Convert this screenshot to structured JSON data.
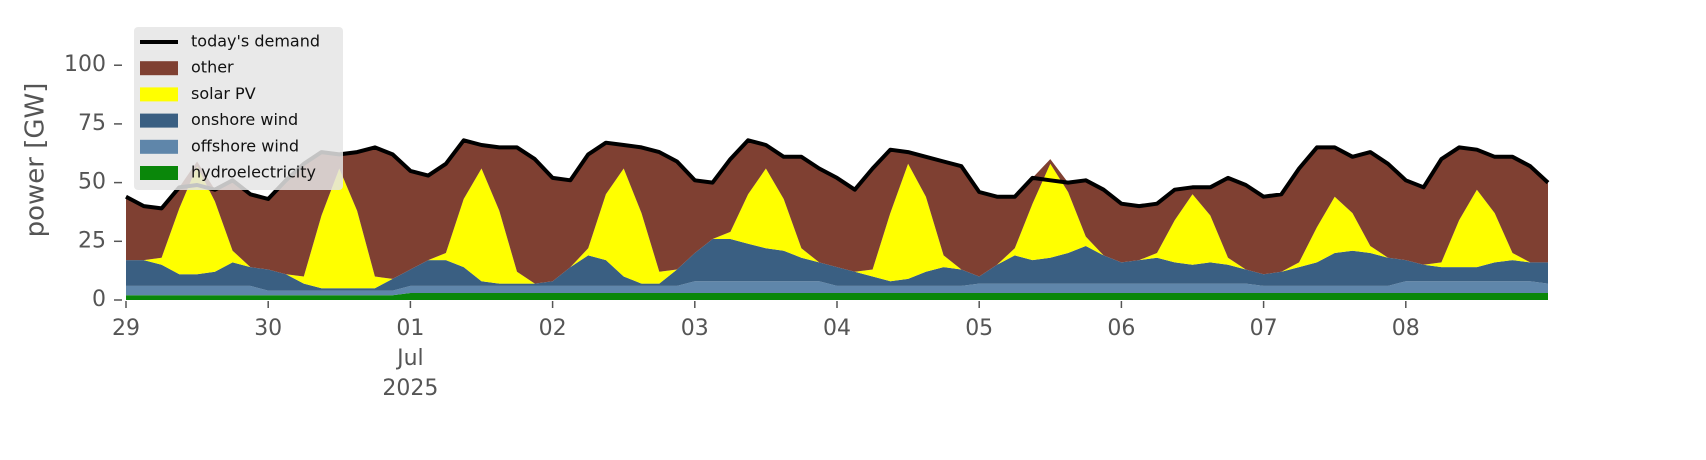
{
  "chart_data": {
    "type": "stacked_area",
    "ylabel": "power [GW]",
    "ylim": [
      0,
      115
    ],
    "yticks": [
      0,
      25,
      50,
      75,
      100
    ],
    "xlim": [
      "2025-06-29 00:00",
      "2025-07-09 00:00"
    ],
    "xticks": [
      {
        "value": "2025-06-29 00:00",
        "label": "29"
      },
      {
        "value": "2025-06-30 00:00",
        "label": "30"
      },
      {
        "value": "2025-07-01 00:00",
        "label": "01"
      },
      {
        "value": "2025-07-02 00:00",
        "label": "02"
      },
      {
        "value": "2025-07-03 00:00",
        "label": "03"
      },
      {
        "value": "2025-07-04 00:00",
        "label": "04"
      },
      {
        "value": "2025-07-05 00:00",
        "label": "05"
      },
      {
        "value": "2025-07-06 00:00",
        "label": "06"
      },
      {
        "value": "2025-07-07 00:00",
        "label": "07"
      },
      {
        "value": "2025-07-08 00:00",
        "label": "08"
      }
    ],
    "xtick_sublabels": [
      {
        "value": "2025-07-01 00:00",
        "label": "Jul"
      },
      {
        "value": "2025-07-01 00:00",
        "label": "2025"
      }
    ],
    "legend": "upper left",
    "x": [
      "2025-06-29 00:00",
      "2025-06-29 03:00",
      "2025-06-29 06:00",
      "2025-06-29 09:00",
      "2025-06-29 12:00",
      "2025-06-29 15:00",
      "2025-06-29 18:00",
      "2025-06-29 21:00",
      "2025-06-30 00:00",
      "2025-06-30 03:00",
      "2025-06-30 06:00",
      "2025-06-30 09:00",
      "2025-06-30 12:00",
      "2025-06-30 15:00",
      "2025-06-30 18:00",
      "2025-06-30 21:00",
      "2025-07-01 00:00",
      "2025-07-01 03:00",
      "2025-07-01 06:00",
      "2025-07-01 09:00",
      "2025-07-01 12:00",
      "2025-07-01 15:00",
      "2025-07-01 18:00",
      "2025-07-01 21:00",
      "2025-07-02 00:00",
      "2025-07-02 03:00",
      "2025-07-02 06:00",
      "2025-07-02 09:00",
      "2025-07-02 12:00",
      "2025-07-02 15:00",
      "2025-07-02 18:00",
      "2025-07-02 21:00",
      "2025-07-03 00:00",
      "2025-07-03 03:00",
      "2025-07-03 06:00",
      "2025-07-03 09:00",
      "2025-07-03 12:00",
      "2025-07-03 15:00",
      "2025-07-03 18:00",
      "2025-07-03 21:00",
      "2025-07-04 00:00",
      "2025-07-04 03:00",
      "2025-07-04 06:00",
      "2025-07-04 09:00",
      "2025-07-04 12:00",
      "2025-07-04 15:00",
      "2025-07-04 18:00",
      "2025-07-04 21:00",
      "2025-07-05 00:00",
      "2025-07-05 03:00",
      "2025-07-05 06:00",
      "2025-07-05 09:00",
      "2025-07-05 12:00",
      "2025-07-05 15:00",
      "2025-07-05 18:00",
      "2025-07-05 21:00",
      "2025-07-06 00:00",
      "2025-07-06 03:00",
      "2025-07-06 06:00",
      "2025-07-06 09:00",
      "2025-07-06 12:00",
      "2025-07-06 15:00",
      "2025-07-06 18:00",
      "2025-07-06 21:00",
      "2025-07-07 00:00",
      "2025-07-07 03:00",
      "2025-07-07 06:00",
      "2025-07-07 09:00",
      "2025-07-07 12:00",
      "2025-07-07 15:00",
      "2025-07-07 18:00",
      "2025-07-07 21:00",
      "2025-07-08 00:00",
      "2025-07-08 03:00",
      "2025-07-08 06:00",
      "2025-07-08 09:00",
      "2025-07-08 12:00",
      "2025-07-08 15:00",
      "2025-07-08 18:00",
      "2025-07-08 21:00",
      "2025-07-09 00:00"
    ],
    "series": [
      {
        "name": "hydroelectricity",
        "color": "#0a870a",
        "values": [
          2,
          2,
          2,
          2,
          2,
          2,
          2,
          2,
          2,
          2,
          2,
          2,
          2,
          2,
          2,
          2,
          3,
          3,
          3,
          3,
          3,
          3,
          3,
          3,
          3,
          3,
          3,
          3,
          3,
          3,
          3,
          3,
          3,
          3,
          3,
          3,
          3,
          3,
          3,
          3,
          3,
          3,
          3,
          3,
          3,
          3,
          3,
          3,
          3,
          3,
          3,
          3,
          3,
          3,
          3,
          3,
          3,
          3,
          3,
          3,
          3,
          3,
          3,
          3,
          3,
          3,
          3,
          3,
          3,
          3,
          3,
          3,
          3,
          3,
          3,
          3,
          3,
          3,
          3,
          3,
          3
        ]
      },
      {
        "name": "offshore wind",
        "color": "#5f86aa",
        "values": [
          4,
          4,
          4,
          4,
          4,
          4,
          4,
          4,
          2,
          2,
          2,
          2,
          2,
          2,
          2,
          2,
          3,
          3,
          3,
          3,
          3,
          3,
          3,
          3,
          3,
          3,
          3,
          3,
          3,
          3,
          3,
          3,
          5,
          5,
          5,
          5,
          5,
          5,
          5,
          5,
          3,
          3,
          3,
          3,
          3,
          3,
          3,
          3,
          4,
          4,
          4,
          4,
          4,
          4,
          4,
          4,
          4,
          4,
          4,
          4,
          4,
          4,
          4,
          4,
          3,
          3,
          3,
          3,
          3,
          3,
          3,
          3,
          5,
          5,
          5,
          5,
          5,
          5,
          5,
          5,
          4
        ]
      },
      {
        "name": "onshore wind",
        "color": "#3a5f82",
        "values": [
          11,
          11,
          9,
          5,
          5,
          6,
          10,
          8,
          9,
          7,
          3,
          1,
          1,
          1,
          1,
          5,
          7,
          11,
          11,
          8,
          2,
          1,
          1,
          1,
          2,
          8,
          13,
          11,
          4,
          1,
          1,
          7,
          12,
          18,
          18,
          16,
          14,
          13,
          10,
          8,
          8,
          6,
          4,
          2,
          3,
          6,
          8,
          7,
          3,
          8,
          12,
          10,
          11,
          13,
          16,
          12,
          9,
          10,
          11,
          9,
          8,
          9,
          8,
          6,
          5,
          6,
          8,
          10,
          14,
          15,
          14,
          12,
          9,
          7,
          6,
          6,
          6,
          8,
          9,
          8,
          9
        ]
      },
      {
        "name": "solar PV",
        "color": "#ffff00",
        "values": [
          0,
          0,
          3,
          28,
          46,
          30,
          5,
          0,
          0,
          0,
          3,
          31,
          51,
          33,
          5,
          0,
          0,
          0,
          3,
          29,
          48,
          31,
          5,
          0,
          0,
          0,
          3,
          28,
          46,
          30,
          5,
          0,
          0,
          0,
          3,
          21,
          34,
          22,
          4,
          0,
          0,
          0,
          3,
          29,
          49,
          32,
          5,
          0,
          0,
          0,
          3,
          24,
          40,
          26,
          4,
          0,
          0,
          0,
          2,
          18,
          30,
          20,
          3,
          0,
          0,
          0,
          2,
          15,
          24,
          16,
          3,
          0,
          0,
          0,
          2,
          20,
          33,
          21,
          3,
          0,
          0
        ]
      },
      {
        "name": "other",
        "color": "#7f4032",
        "values": [
          27,
          23,
          21,
          9,
          2,
          5,
          30,
          31,
          30,
          40,
          48,
          27,
          6,
          25,
          55,
          53,
          42,
          36,
          38,
          25,
          10,
          27,
          53,
          53,
          44,
          37,
          40,
          22,
          10,
          28,
          51,
          46,
          31,
          24,
          31,
          23,
          10,
          18,
          39,
          40,
          38,
          35,
          43,
          27,
          5,
          17,
          40,
          44,
          36,
          29,
          22,
          11,
          2,
          4,
          24,
          28,
          25,
          23,
          21,
          13,
          3,
          12,
          34,
          36,
          33,
          33,
          40,
          34,
          21,
          24,
          40,
          40,
          34,
          33,
          44,
          31,
          17,
          24,
          41,
          41,
          34
        ]
      }
    ],
    "lines": [
      {
        "name": "today's demand",
        "color": "#000000",
        "values": [
          44,
          40,
          39,
          48,
          49,
          47,
          51,
          45,
          43,
          51,
          58,
          63,
          62,
          63,
          65,
          62,
          55,
          53,
          58,
          68,
          66,
          65,
          65,
          60,
          52,
          51,
          62,
          67,
          66,
          65,
          63,
          59,
          51,
          50,
          60,
          68,
          66,
          61,
          61,
          56,
          52,
          47,
          56,
          64,
          63,
          61,
          59,
          57,
          46,
          44,
          44,
          52,
          51,
          50,
          51,
          47,
          41,
          40,
          41,
          47,
          48,
          48,
          52,
          49,
          44,
          45,
          56,
          65,
          65,
          61,
          63,
          58,
          51,
          48,
          60,
          65,
          64,
          61,
          61,
          57,
          50
        ]
      }
    ]
  }
}
